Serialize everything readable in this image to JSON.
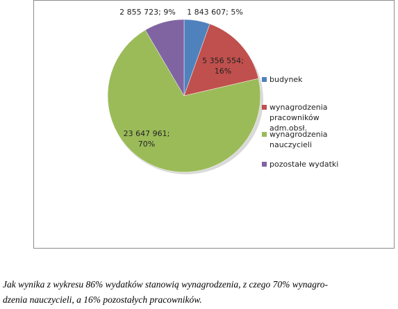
{
  "chart_data": {
    "type": "pie",
    "categories": [
      "budynek",
      "wynagrodzenia pracowników adm.obsł.",
      "wynagrodzenia nauczycieli",
      "pozostałe wydatki"
    ],
    "values": [
      1843607,
      5356554,
      23647961,
      2855723
    ],
    "value_labels": [
      "1 843 607; 5%",
      "5 356 554; 16%",
      "23 647 961; 70%",
      "2 855 723; 9%"
    ],
    "colors": [
      "#4f81bd",
      "#c0504d",
      "#9bbb59",
      "#8064a2"
    ],
    "legend": "right"
  },
  "caption": [
    "Jak wynika z wykresu 86% wydatków stanowią wynagrodzenia, z czego 70% wynagro-",
    "dzenia nauczycieli, a 16% pozostałych pracowników."
  ]
}
